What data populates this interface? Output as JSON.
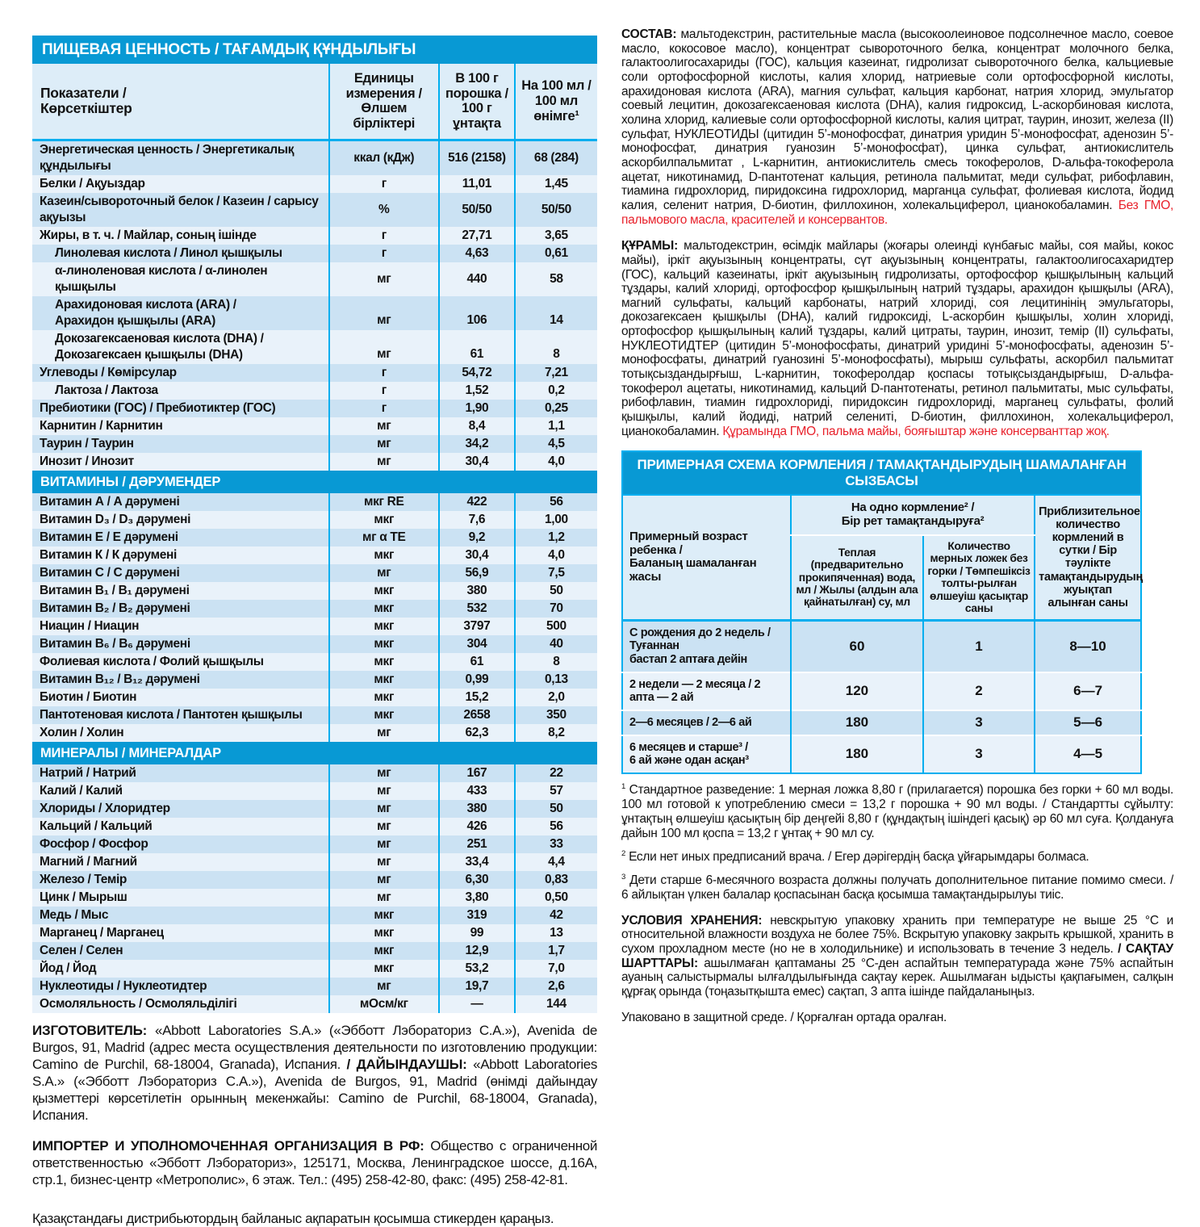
{
  "colors": {
    "brand_blue": "#0899d4",
    "line_cyan": "#00aeef",
    "stripe_medium": "#cbe2f3",
    "stripe_pale": "#e9f2fa",
    "header_band": "#ddedf8",
    "warning_red": "#e8212b"
  },
  "nutrition_table": {
    "title": "ПИЩЕВАЯ ЦЕННОСТЬ / ТАҒАМДЫҚ ҚҰНДЫЛЫҒЫ",
    "headers": {
      "indicators": "Показатели /\nКөрсеткіштер",
      "units": "Единицы\nизмерения /\nӨлшем бірліктері",
      "per_100g": "В 100 г\nпорошка /\n100 г ұнтақта",
      "per_100ml": "На 100 мл /\n100 мл\nөнімге¹"
    },
    "sections": [
      {
        "title": null,
        "rows": [
          {
            "label": "Энергетическая ценность / Энергетикалық құндылығы",
            "unit": "ккал (кДж)",
            "v100g": "516 (2158)",
            "v100ml": "68 (284)",
            "indent": false
          },
          {
            "label": "Белки / Ақуыздар",
            "unit": "г",
            "v100g": "11,01",
            "v100ml": "1,45",
            "indent": false
          },
          {
            "label": "Казеин/сывороточный белок / Казеин / сарысу ақуызы",
            "unit": "%",
            "v100g": "50/50",
            "v100ml": "50/50",
            "indent": false
          },
          {
            "label": "Жиры, в т. ч. / Майлар, соның ішінде",
            "unit": "г",
            "v100g": "27,71",
            "v100ml": "3,65",
            "indent": false
          },
          {
            "label": "Линолевая кислота / Линол қышқылы",
            "unit": "г",
            "v100g": "4,63",
            "v100ml": "0,61",
            "indent": true
          },
          {
            "label": "α-линоленовая кислота / α-линолен қышқылы",
            "unit": "мг",
            "v100g": "440",
            "v100ml": "58",
            "indent": true
          },
          {
            "label": "Арахидоновая кислота (ARA) /\nАрахидон қышқылы (ARA)",
            "unit": "мг",
            "v100g": "106",
            "v100ml": "14",
            "indent": true
          },
          {
            "label": "Докозагексаеновая кислота (DHA) /\nДокозагексаен қышқылы (DHA)",
            "unit": "мг",
            "v100g": "61",
            "v100ml": "8",
            "indent": true
          },
          {
            "label": "Углеводы / Көмірсулар",
            "unit": "г",
            "v100g": "54,72",
            "v100ml": "7,21",
            "indent": false
          },
          {
            "label": "Лактоза / Лактоза",
            "unit": "г",
            "v100g": "1,52",
            "v100ml": "0,2",
            "indent": true
          },
          {
            "label": "Пребиотики (ГОС) / Пребиотиктер (ГОС)",
            "unit": "г",
            "v100g": "1,90",
            "v100ml": "0,25",
            "indent": false
          },
          {
            "label": "Карнитин / Карнитин",
            "unit": "мг",
            "v100g": "8,4",
            "v100ml": "1,1",
            "indent": false
          },
          {
            "label": "Таурин / Таурин",
            "unit": "мг",
            "v100g": "34,2",
            "v100ml": "4,5",
            "indent": false
          },
          {
            "label": "Инозит / Инозит",
            "unit": "мг",
            "v100g": "30,4",
            "v100ml": "4,0",
            "indent": false
          }
        ]
      },
      {
        "title": "ВИТАМИНЫ / ДӘРУМЕНДЕР",
        "rows": [
          {
            "label": "Витамин А / А дәрумені",
            "unit": "мкг RE",
            "v100g": "422",
            "v100ml": "56",
            "indent": false
          },
          {
            "label": "Витамин D₃ / D₃ дәрумені",
            "unit": "мкг",
            "v100g": "7,6",
            "v100ml": "1,00",
            "indent": false
          },
          {
            "label": "Витамин Е / Е дәрумені",
            "unit": "мг α ТЕ",
            "v100g": "9,2",
            "v100ml": "1,2",
            "indent": false
          },
          {
            "label": "Витамин К / К дәрумені",
            "unit": "мкг",
            "v100g": "30,4",
            "v100ml": "4,0",
            "indent": false
          },
          {
            "label": "Витамин С / С дәрумені",
            "unit": "мг",
            "v100g": "56,9",
            "v100ml": "7,5",
            "indent": false
          },
          {
            "label": "Витамин B₁ / B₁ дәрумені",
            "unit": "мкг",
            "v100g": "380",
            "v100ml": "50",
            "indent": false
          },
          {
            "label": "Витамин B₂ / B₂ дәрумені",
            "unit": "мкг",
            "v100g": "532",
            "v100ml": "70",
            "indent": false
          },
          {
            "label": "Ниацин / Ниацин",
            "unit": "мкг",
            "v100g": "3797",
            "v100ml": "500",
            "indent": false
          },
          {
            "label": "Витамин B₆ / B₆ дәрумені",
            "unit": "мкг",
            "v100g": "304",
            "v100ml": "40",
            "indent": false
          },
          {
            "label": "Фолиевая кислота / Фолий қышқылы",
            "unit": "мкг",
            "v100g": "61",
            "v100ml": "8",
            "indent": false
          },
          {
            "label": "Витамин B₁₂ / B₁₂ дәрумені",
            "unit": "мкг",
            "v100g": "0,99",
            "v100ml": "0,13",
            "indent": false
          },
          {
            "label": "Биотин / Биотин",
            "unit": "мкг",
            "v100g": "15,2",
            "v100ml": "2,0",
            "indent": false
          },
          {
            "label": "Пантотеновая кислота / Пантотен қышқылы",
            "unit": "мкг",
            "v100g": "2658",
            "v100ml": "350",
            "indent": false
          },
          {
            "label": "Холин / Холин",
            "unit": "мг",
            "v100g": "62,3",
            "v100ml": "8,2",
            "indent": false
          }
        ]
      },
      {
        "title": "МИНЕРАЛЫ / МИНЕРАЛДАР",
        "rows": [
          {
            "label": "Натрий / Натрий",
            "unit": "мг",
            "v100g": "167",
            "v100ml": "22",
            "indent": false
          },
          {
            "label": "Калий / Калий",
            "unit": "мг",
            "v100g": "433",
            "v100ml": "57",
            "indent": false
          },
          {
            "label": "Хлориды / Хлоридтер",
            "unit": "мг",
            "v100g": "380",
            "v100ml": "50",
            "indent": false
          },
          {
            "label": "Кальций / Кальций",
            "unit": "мг",
            "v100g": "426",
            "v100ml": "56",
            "indent": false
          },
          {
            "label": "Фосфор / Фосфор",
            "unit": "мг",
            "v100g": "251",
            "v100ml": "33",
            "indent": false
          },
          {
            "label": "Магний / Магний",
            "unit": "мг",
            "v100g": "33,4",
            "v100ml": "4,4",
            "indent": false
          },
          {
            "label": "Железо / Темір",
            "unit": "мг",
            "v100g": "6,30",
            "v100ml": "0,83",
            "indent": false
          },
          {
            "label": "Цинк / Мырыш",
            "unit": "мг",
            "v100g": "3,80",
            "v100ml": "0,50",
            "indent": false
          },
          {
            "label": "Медь / Мыс",
            "unit": "мкг",
            "v100g": "319",
            "v100ml": "42",
            "indent": false
          },
          {
            "label": "Марганец / Марганец",
            "unit": "мкг",
            "v100g": "99",
            "v100ml": "13",
            "indent": false
          },
          {
            "label": "Селен / Селен",
            "unit": "мкг",
            "v100g": "12,9",
            "v100ml": "1,7",
            "indent": false
          },
          {
            "label": "Йод / Йод",
            "unit": "мкг",
            "v100g": "53,2",
            "v100ml": "7,0",
            "indent": false
          },
          {
            "label": "Нуклеотиды / Нуклеотидтер",
            "unit": "мг",
            "v100g": "19,7",
            "v100ml": "2,6",
            "indent": false
          },
          {
            "label": "Осмоляльность / Осмоляльділігі",
            "unit": "мОсм/кг",
            "v100g": "—",
            "v100ml": "144",
            "indent": false
          }
        ]
      }
    ]
  },
  "manufacturer": {
    "label_ru": "ИЗГОТОВИТЕЛЬ:",
    "text_ru": "«Abbott Laboratories S.A.» («Эбботт Лэбораториз С.А.»), Avenida de Burgos, 91, Madrid (адрес места осуществления деятельности по изготовлению продукции: Camino de Purchil, 68-18004, Granada), Испания.",
    "label_kz": "/ ДАЙЫНДАУШЫ:",
    "text_kz": "«Abbott Laboratories S.A.» («Эбботт Лэбораториз С.А.»), Avenida de Burgos, 91, Madrid (өнімді дайындау қызметтері көрсетілетін орынның мекенжайы: Camino de Purchil, 68-18004, Granada), Испания."
  },
  "importer": {
    "label": "ИМПОРТЕР И УПОЛНОМОЧЕННАЯ ОРГАНИЗАЦИЯ В РФ:",
    "text": "Общество с ограниченной ответственностью «Эбботт Лэбораториз», 125171, Москва, Ленинградское шоссе, д.16А, стр.1, бизнес-центр «Метрополис», 6 этаж. Тел.: (495) 258-42-80, факс: (495) 258-42-81."
  },
  "distributor_note": "Қазақстандағы дистрибьютордың байланыс ақпаратын қосымша стикерден қараңыз.",
  "composition_ru": {
    "label": "СОСТАВ:",
    "text": "мальтодекстрин, растительные масла (высокоолеиновое подсолнечное масло, соевое масло, кокосовое масло), концентрат сывороточного белка, концентрат молочного белка, галактоолигосахариды (ГОС), кальция казеинат, гидролизат сывороточного белка, кальциевые соли ортофосфорной кислоты, калия хлорид, натриевые соли ортофосфорной кислоты, арахидоновая кислота (ARA), магния сульфат, кальция карбонат, натрия хлорид, эмульгатор соевый лецитин, докозагексаеновая кислота (DHA), калия гидроксид, L-аскорбиновая кислота, холина хлорид, калиевые соли ортофосфорной кислоты, калия цитрат, таурин, инозит, железа (II) сульфат, НУКЛЕОТИДЫ (цитидин 5’-монофосфат, динатрия уридин 5’-монофосфат, аденозин 5’-монофосфат, динатрия гуанозин 5’-монофосфат), цинка сульфат, антиокислитель аскорбилпальмитат , L-карнитин, антиокислитель смесь токоферолов, D-альфа-токоферола ацетат, никотинамид, D-пантотенат кальция, ретинола пальмитат, меди сульфат, рибофлавин, тиамина гидрохлорид, пиридоксина гидрохлорид, марганца сульфат, фолиевая кислота, йодид калия, селенит натрия, D-биотин, филлохинон, холекальциферол, цианокобаламин.",
    "warning": "Без ГМО, пальмового масла, красителей и консервантов."
  },
  "composition_kz": {
    "label": "ҚҰРАМЫ:",
    "text": "мальтодекстрин, өсімдік майлары (жоғары олеинді күнбағыс майы, соя майы, кокос майы), іркіт ақуызының концентраты, сүт ақуызының концентраты, галактоолигосахаридтер (ГОС), кальций казеинаты, іркіт ақуызының гидролизаты, ортофосфор қышқылының кальций тұздары, калий хлориді, ортофосфор қышқылының натрий тұздары, арахидон қышқылы (ARA), магний сульфаты, кальций карбонаты, натрий хлориді, соя лецитинінің эмульгаторы, докозагексаен қышқылы (DHA), калий гидроксиді, L-аскорбин қышқылы, холин хлориді, ортофосфор қышқылының калий тұздары, калий цитраты, таурин, инозит, темір (II) сульфаты, НУКЛЕОТИДТЕР (цитидин 5’-монофосфаты, динатрий уридині 5’-монофосфаты, аденозин 5’-монофосфаты, динатрий гуанозині 5’-монофосфаты), мырыш сульфаты, аскорбил пальмитат тотықсыздандырғыш, L-карнитин, токоферолдар қоспасы тотықсыздандырғыш, D-альфа-токоферол ацетаты, никотинамид, кальций D-пантотенаты, ретинол пальмитаты, мыс сульфаты, рибофлавин, тиамин гидрохлориді, пиридоксин гидрохлориді, марганец сульфаты, фолий қышқылы, калий йодиді, натрий селениті, D-биотин, филлохинон, холекальциферол, цианокобаламин.",
    "warning": "Құрамында ГМО, пальма майы, бояғыштар және консерванттар жоқ."
  },
  "feeding_table": {
    "title": "ПРИМЕРНАЯ СХЕМА КОРМЛЕНИЯ / ТАМАҚТАНДЫРУДЫҢ ШАМАЛАНҒАН СЫЗБАСЫ",
    "headers": {
      "age": "Примерный возраст ребенка /\nБаланың шамаланған жасы",
      "per_feeding": "На одно кормление² /\nБір рет тамақтандыруға²",
      "water": "Теплая (предварительно прокипяченная) вода, мл / Жылы (алдын ала қайнатылған) су, мл",
      "scoops": "Количество мерных ложек без горки / Төмпешіксіз толты-рылған өлшеуіш қасықтар саны",
      "daily": "Приблизительное количество кормлений в сутки / Бір тәулікте тамақтандырудың жуықтап алынған саны"
    },
    "rows": [
      {
        "age": "С рождения до 2 недель / Туғаннан\nбастап 2 аптаға дейін",
        "water": "60",
        "scoops": "1",
        "daily": "8—10"
      },
      {
        "age": "2 недели — 2 месяца / 2 апта — 2 ай",
        "water": "120",
        "scoops": "2",
        "daily": "6—7"
      },
      {
        "age": "2—6 месяцев / 2—6 ай",
        "water": "180",
        "scoops": "3",
        "daily": "5—6"
      },
      {
        "age": "6 месяцев и старше³ /\n6 ай және одан асқан³",
        "water": "180",
        "scoops": "3",
        "daily": "4—5"
      }
    ]
  },
  "footnotes": [
    {
      "mark": "1",
      "text": "Стандартное разведение: 1 мерная ложка 8,80 г (прилагается) порошка без горки + 60 мл воды. 100 мл готовой к употреблению смеси = 13,2 г порошка + 90 мл воды. / Стандартты сұйылту: ұнтақтың өлшеуіш қасықтың бір деңгейі 8,80 г (құндақтың ішіндегі қасық) әр 60 мл суға. Қолдануға дайын 100 мл қоспа = 13,2 г ұнтақ + 90 мл су."
    },
    {
      "mark": "2",
      "text": "Если нет иных предписаний врача. / Егер дәрігердің басқа ұйғарымдары болмаса."
    },
    {
      "mark": "3",
      "text": "Дети старше 6-месячного возраста должны получать дополнительное питание помимо смеси. / 6 айлықтан үлкен балалар қоспасынан басқа қосымша тамақтандырылуы тиіс."
    }
  ],
  "storage": {
    "label_ru": "УСЛОВИЯ ХРАНЕНИЯ:",
    "text_ru": "невскрытую упаковку хранить при температуре не выше 25 °С и относительной влажности воздуха не более 75%. Вскрытую упаковку закрыть крышкой, хранить в сухом прохладном месте (но не в холодильнике) и использовать в течение 3 недель.",
    "label_kz": "/ САҚТАУ ШАРТТАРЫ:",
    "text_kz": "ашылмаған қаптаманы 25 °С-ден аспайтын температурада және 75% аспайтын ауаның салыстырмалы ылғалдылығында сақтау керек. Ашылмаған ыдысты қақпағымен, салқын құрғақ орында (тоңазытқышта емес) сақтап, 3 апта ішінде пайдаланыңыз."
  },
  "packed_note": "Упаковано в защитной среде. / Қорғалған ортада оралған."
}
